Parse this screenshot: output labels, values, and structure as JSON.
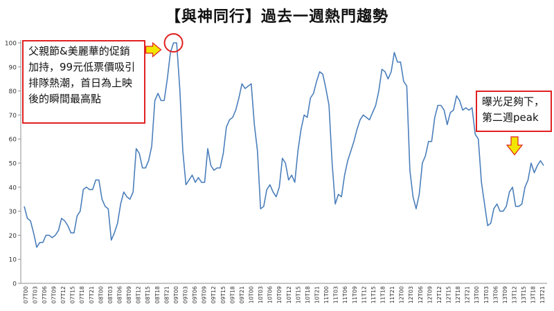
{
  "chart_data": {
    "type": "line",
    "title": "【與神同行】過去一週熱門趨勢",
    "xlabel": "",
    "ylabel": "",
    "ylim": [
      0,
      100
    ],
    "yticks": [
      0,
      10,
      20,
      30,
      40,
      50,
      60,
      70,
      80,
      90,
      100
    ],
    "grid": false,
    "legend": "none",
    "line_color": "#4a7ebb",
    "x_tick_labels": [
      "07T00",
      "07T03",
      "07T06",
      "07T09",
      "07T12",
      "07T15",
      "07T18",
      "07T21",
      "08T00",
      "08T03",
      "08T06",
      "08T09",
      "08T12",
      "08T15",
      "08T18",
      "08T21",
      "09T00",
      "09T03",
      "09T06",
      "09T09",
      "09T12",
      "09T15",
      "09T18",
      "09T21",
      "10T00",
      "10T03",
      "10T06",
      "10T09",
      "10T12",
      "10T15",
      "10T18",
      "10T21",
      "11T00",
      "11T03",
      "11T06",
      "11T09",
      "11T12",
      "11T15",
      "11T18",
      "11T21",
      "12T00",
      "12T03",
      "12T06",
      "12T09",
      "12T12",
      "12T15",
      "12T18",
      "12T21",
      "13T00",
      "13T03",
      "13T06",
      "13T09",
      "13T12",
      "13T15",
      "13T18",
      "13T21"
    ],
    "series": [
      {
        "values": [
          32,
          27,
          26,
          21,
          15,
          17,
          17,
          20,
          20,
          19,
          20,
          22,
          27,
          26,
          24,
          21,
          21,
          28,
          30,
          39,
          40,
          39,
          39,
          43,
          43,
          35,
          32,
          31,
          18,
          21,
          25,
          33,
          38,
          36,
          35,
          38,
          56,
          54,
          48,
          48,
          51,
          57,
          76,
          79,
          76,
          76,
          85,
          96,
          100,
          100,
          81,
          55,
          41,
          43,
          45,
          42,
          44,
          42,
          42,
          56,
          49,
          47,
          48,
          48,
          54,
          65,
          68,
          69,
          72,
          77,
          83,
          81,
          82,
          83,
          66,
          55,
          31,
          32,
          39,
          41,
          38,
          36,
          40,
          52,
          50,
          43,
          45,
          42,
          55,
          64,
          70,
          69,
          77,
          79,
          84,
          88,
          87,
          81,
          74,
          50,
          33,
          37,
          36,
          45,
          51,
          55,
          59,
          64,
          68,
          70,
          69,
          68,
          71,
          74,
          80,
          89,
          88,
          85,
          88,
          96,
          92,
          92,
          84,
          82,
          47,
          36,
          31,
          37,
          50,
          53,
          59,
          59,
          69,
          74,
          74,
          72,
          66,
          71,
          72,
          78,
          76,
          72,
          73,
          72,
          73,
          62,
          60,
          42,
          33,
          24,
          25,
          31,
          33,
          30,
          30,
          32,
          38,
          40,
          32,
          32,
          33,
          40,
          43,
          50,
          46,
          49,
          51,
          49
        ]
      }
    ],
    "annotations": [
      {
        "lines": [
          "父親節&美麗華的促銷",
          "加持，99元低票價吸引",
          "排隊熱潮，首日為上映",
          "後的瞬間最高點"
        ],
        "marker_color": "#e02020",
        "arrow_color": "#f2e600"
      },
      {
        "lines": [
          "曝光足夠下，",
          "第二週peak"
        ],
        "arrow_color": "#f2e600"
      }
    ]
  }
}
